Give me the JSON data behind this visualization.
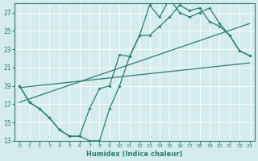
{
  "xlabel": "Humidex (Indice chaleur)",
  "bg_color": "#d4ecec",
  "grid_color": "#c0dada",
  "line_color": "#2d7d6e",
  "xlim": [
    -0.5,
    23.5
  ],
  "ylim": [
    13,
    28
  ],
  "yticks": [
    13,
    15,
    17,
    19,
    21,
    23,
    25,
    27
  ],
  "xticks": [
    0,
    1,
    2,
    3,
    4,
    5,
    6,
    7,
    8,
    9,
    10,
    11,
    12,
    13,
    14,
    15,
    16,
    17,
    18,
    19,
    20,
    21,
    22,
    23
  ],
  "line1_x": [
    0,
    1,
    2,
    3,
    4,
    5,
    6,
    7,
    8,
    9,
    10,
    11,
    12,
    13,
    14,
    15,
    16,
    17,
    18,
    19,
    20,
    21,
    22,
    23
  ],
  "line1_y": [
    19.0,
    17.2,
    16.5,
    15.5,
    14.2,
    13.5,
    13.5,
    13.0,
    13.0,
    16.5,
    19.0,
    22.2,
    24.5,
    27.8,
    26.5,
    28.5,
    27.0,
    26.5,
    27.0,
    27.5,
    25.8,
    24.5,
    22.8,
    22.3
  ],
  "line2_x": [
    0,
    1,
    2,
    3,
    4,
    5,
    6,
    7,
    8,
    9,
    10,
    11,
    12,
    13,
    14,
    15,
    16,
    17,
    18,
    19,
    20,
    21,
    22,
    23
  ],
  "line2_y": [
    19.0,
    17.2,
    16.5,
    15.5,
    14.2,
    13.5,
    13.5,
    16.5,
    18.7,
    19.0,
    22.4,
    22.2,
    24.5,
    24.5,
    25.5,
    26.5,
    27.8,
    27.2,
    27.5,
    26.0,
    25.5,
    24.5,
    22.8,
    22.3
  ],
  "line3_x": [
    0,
    23
  ],
  "line3_y": [
    18.8,
    21.5
  ],
  "line4_x": [
    0,
    23
  ],
  "line4_y": [
    17.2,
    25.8
  ]
}
